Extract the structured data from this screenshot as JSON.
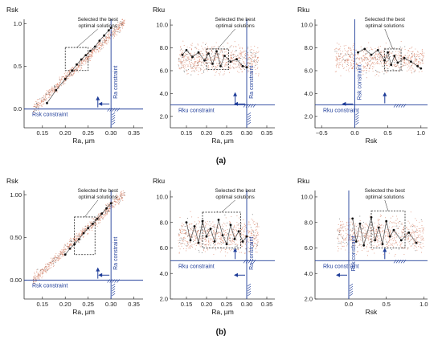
{
  "figure": {
    "row_labels": [
      "(a)",
      "(b)"
    ]
  },
  "colors": {
    "accent": "#1f3d99",
    "points_background": "#d9846a",
    "points_background_alt": "#555555",
    "optimal_points": "#111111",
    "optimal_line": "#333333"
  },
  "chart_data": [
    {
      "type": "scatter",
      "row": "(a)",
      "xlabel": "Ra, µm",
      "ylabel": "Rsk",
      "xlim": [
        0.11,
        0.37
      ],
      "ylim": [
        -0.22,
        1.05
      ],
      "xticks": [
        0.15,
        0.2,
        0.25,
        0.3,
        0.35
      ],
      "yticks": [
        0.0,
        0.5,
        1.0
      ],
      "xtick_labels": [
        "0.15",
        "0.20",
        "0.25",
        "0.30",
        "0.35"
      ],
      "ytick_labels": [
        "0.0",
        "0.5",
        "1.0"
      ],
      "annotation": [
        "Selected the best",
        "optimal solutions"
      ],
      "highlight_box": {
        "x": [
          0.2,
          0.25
        ],
        "y": [
          0.45,
          0.72
        ]
      },
      "constraints": [
        {
          "label": "Rsk constraint",
          "orientation": "horizontal",
          "value": 0.0
        },
        {
          "label": "Ra constraint",
          "orientation": "vertical",
          "value": 0.3
        }
      ],
      "cloud": {
        "kind": "band",
        "x_range": [
          0.13,
          0.33
        ],
        "y_at_xmin": 0.0,
        "y_at_xmax": 1.02,
        "spread": 0.06
      },
      "optimal_points": [
        [
          0.16,
          0.07
        ],
        [
          0.18,
          0.22
        ],
        [
          0.2,
          0.35
        ],
        [
          0.215,
          0.45
        ],
        [
          0.225,
          0.52
        ],
        [
          0.235,
          0.58
        ],
        [
          0.245,
          0.63
        ],
        [
          0.255,
          0.68
        ],
        [
          0.265,
          0.73
        ],
        [
          0.275,
          0.8
        ],
        [
          0.285,
          0.86
        ],
        [
          0.295,
          0.92
        ],
        [
          0.3,
          0.95
        ]
      ]
    },
    {
      "type": "scatter",
      "row": "(a)",
      "xlabel": "Ra, µm",
      "ylabel": "Rku",
      "xlim": [
        0.11,
        0.37
      ],
      "ylim": [
        1.0,
        10.5
      ],
      "xticks": [
        0.15,
        0.2,
        0.25,
        0.3,
        0.35
      ],
      "yticks": [
        2.0,
        4.0,
        6.0,
        8.0,
        10.0
      ],
      "xtick_labels": [
        "0.15",
        "0.20",
        "0.25",
        "0.30",
        "0.35"
      ],
      "ytick_labels": [
        "2.0",
        "4.0",
        "6.0",
        "8.0",
        "10.0"
      ],
      "annotation": [
        "Selected the best",
        "optimal solutions"
      ],
      "highlight_box": {
        "x": [
          0.2,
          0.255
        ],
        "y": [
          6.1,
          7.9
        ]
      },
      "constraints": [
        {
          "label": "Rku constraint",
          "orientation": "horizontal",
          "value": 3.0
        },
        {
          "label": "Ra constraint",
          "orientation": "vertical",
          "value": 0.3
        }
      ],
      "cloud": {
        "kind": "blob",
        "x_range": [
          0.13,
          0.33
        ],
        "y_center": 7.0,
        "y_spread": 1.1
      },
      "optimal_points": [
        [
          0.14,
          7.4
        ],
        [
          0.15,
          7.8
        ],
        [
          0.165,
          7.2
        ],
        [
          0.18,
          7.6
        ],
        [
          0.195,
          6.9
        ],
        [
          0.205,
          7.5
        ],
        [
          0.215,
          6.6
        ],
        [
          0.225,
          7.7
        ],
        [
          0.235,
          6.4
        ],
        [
          0.245,
          7.3
        ],
        [
          0.26,
          6.8
        ],
        [
          0.275,
          7.0
        ],
        [
          0.29,
          6.4
        ],
        [
          0.3,
          6.3
        ]
      ]
    },
    {
      "type": "scatter",
      "row": "(a)",
      "xlabel": "Rsk",
      "ylabel": "Rku",
      "xlim": [
        -0.6,
        1.1
      ],
      "ylim": [
        1.0,
        10.5
      ],
      "xticks": [
        -0.5,
        0.0,
        0.5,
        1.0
      ],
      "yticks": [
        2.0,
        4.0,
        6.0,
        8.0,
        10.0
      ],
      "xtick_labels": [
        "−0.5",
        "0.0",
        "0.5",
        "1.0"
      ],
      "ytick_labels": [
        "2.0",
        "4.0",
        "6.0",
        "8.0",
        "10.0"
      ],
      "annotation": [
        "Selected the best",
        "optimal solutions"
      ],
      "highlight_box": {
        "x": [
          0.45,
          0.7
        ],
        "y": [
          6.0,
          7.9
        ]
      },
      "constraints": [
        {
          "label": "Rsk constraint",
          "orientation": "vertical",
          "value": 0.0
        },
        {
          "label": "Rku constraint",
          "orientation": "horizontal",
          "value": 3.0
        }
      ],
      "cloud": {
        "kind": "blob",
        "x_range": [
          -0.3,
          1.05
        ],
        "y_center": 7.0,
        "y_spread": 1.1
      },
      "optimal_points": [
        [
          0.05,
          7.6
        ],
        [
          0.15,
          7.9
        ],
        [
          0.25,
          7.4
        ],
        [
          0.35,
          7.8
        ],
        [
          0.45,
          6.9
        ],
        [
          0.5,
          7.6
        ],
        [
          0.55,
          6.5
        ],
        [
          0.6,
          7.3
        ],
        [
          0.65,
          6.7
        ],
        [
          0.75,
          7.1
        ],
        [
          0.85,
          6.8
        ],
        [
          0.95,
          6.4
        ],
        [
          1.0,
          6.2
        ]
      ]
    },
    {
      "type": "scatter",
      "row": "(b)",
      "xlabel": "Ra, µm",
      "ylabel": "Rsk",
      "xlim": [
        0.11,
        0.37
      ],
      "ylim": [
        -0.22,
        1.05
      ],
      "xticks": [
        0.15,
        0.2,
        0.25,
        0.3,
        0.35
      ],
      "yticks": [
        0.0,
        0.5,
        1.0
      ],
      "xtick_labels": [
        "0.15",
        "0.20",
        "0.25",
        "0.30",
        "0.35"
      ],
      "ytick_labels": [
        "0.00",
        "0.50",
        "1.00"
      ],
      "annotation": [
        "Selected the best",
        "optimal solutions"
      ],
      "highlight_box": {
        "x": [
          0.22,
          0.265
        ],
        "y": [
          0.3,
          0.74
        ]
      },
      "constraints": [
        {
          "label": "Rsk constraint",
          "orientation": "horizontal",
          "value": 0.0
        },
        {
          "label": "Ra constraint",
          "orientation": "vertical",
          "value": 0.3
        }
      ],
      "cloud": {
        "kind": "band",
        "x_range": [
          0.13,
          0.33
        ],
        "y_at_xmin": 0.0,
        "y_at_xmax": 1.02,
        "spread": 0.06
      },
      "optimal_points": [
        [
          0.2,
          0.3
        ],
        [
          0.21,
          0.37
        ],
        [
          0.22,
          0.42
        ],
        [
          0.23,
          0.48
        ],
        [
          0.24,
          0.55
        ],
        [
          0.25,
          0.61
        ],
        [
          0.26,
          0.66
        ],
        [
          0.27,
          0.72
        ],
        [
          0.28,
          0.78
        ],
        [
          0.29,
          0.84
        ],
        [
          0.3,
          0.9
        ]
      ]
    },
    {
      "type": "scatter",
      "row": "(b)",
      "xlabel": "Ra, µm",
      "ylabel": "Rku",
      "xlim": [
        0.11,
        0.37
      ],
      "ylim": [
        2.0,
        10.5
      ],
      "xticks": [
        0.15,
        0.2,
        0.25,
        0.3,
        0.35
      ],
      "yticks": [
        2.0,
        4.0,
        6.0,
        8.0,
        10.0
      ],
      "xtick_labels": [
        "0.15",
        "0.20",
        "0.25",
        "0.30",
        "0.35"
      ],
      "ytick_labels": [
        "2.0",
        "4.0",
        "6.0",
        "8.0",
        "10.0"
      ],
      "annotation": [
        "Selected the best",
        "optimal solutions"
      ],
      "highlight_box": {
        "x": [
          0.19,
          0.285
        ],
        "y": [
          6.0,
          8.8
        ]
      },
      "constraints": [
        {
          "label": "Rku constraint",
          "orientation": "horizontal",
          "value": 5.0
        },
        {
          "label": "Ra constraint",
          "orientation": "vertical",
          "value": 0.3
        }
      ],
      "cloud": {
        "kind": "blob",
        "x_range": [
          0.13,
          0.33
        ],
        "y_center": 7.0,
        "y_spread": 1.2
      },
      "optimal_points": [
        [
          0.15,
          8.0
        ],
        [
          0.16,
          6.6
        ],
        [
          0.17,
          7.7
        ],
        [
          0.18,
          6.4
        ],
        [
          0.19,
          8.1
        ],
        [
          0.2,
          6.9
        ],
        [
          0.21,
          7.5
        ],
        [
          0.22,
          6.5
        ],
        [
          0.23,
          8.2
        ],
        [
          0.24,
          7.0
        ],
        [
          0.25,
          6.3
        ],
        [
          0.26,
          7.8
        ],
        [
          0.27,
          6.7
        ],
        [
          0.28,
          7.3
        ],
        [
          0.29,
          6.5
        ],
        [
          0.3,
          6.9
        ]
      ]
    },
    {
      "type": "scatter",
      "row": "(b)",
      "xlabel": "Rsk",
      "ylabel": "Rku",
      "xlim": [
        -0.45,
        1.05
      ],
      "ylim": [
        2.0,
        10.5
      ],
      "xticks": [
        0.0,
        0.5,
        1.0
      ],
      "yticks": [
        2.0,
        4.0,
        6.0,
        8.0,
        10.0
      ],
      "xtick_labels": [
        "0.0",
        "0.5",
        "1.0"
      ],
      "ytick_labels": [
        "2.0",
        "4.0",
        "6.0",
        "8.0",
        "10.0"
      ],
      "annotation": [
        "Selected the best",
        "optimal solutions"
      ],
      "highlight_box": {
        "x": [
          0.3,
          0.75
        ],
        "y": [
          6.0,
          8.9
        ]
      },
      "constraints": [
        {
          "label": "Rsk constraint",
          "orientation": "vertical",
          "value": 0.0
        },
        {
          "label": "Rku constraint",
          "orientation": "horizontal",
          "value": 5.0
        }
      ],
      "cloud": {
        "kind": "blob",
        "x_range": [
          -0.15,
          1.0
        ],
        "y_center": 7.0,
        "y_spread": 1.2
      },
      "optimal_points": [
        [
          0.05,
          8.3
        ],
        [
          0.1,
          6.5
        ],
        [
          0.15,
          7.9
        ],
        [
          0.2,
          6.2
        ],
        [
          0.3,
          8.4
        ],
        [
          0.35,
          6.6
        ],
        [
          0.4,
          7.6
        ],
        [
          0.45,
          6.3
        ],
        [
          0.5,
          8.1
        ],
        [
          0.55,
          6.9
        ],
        [
          0.6,
          7.4
        ],
        [
          0.7,
          6.6
        ],
        [
          0.8,
          7.2
        ],
        [
          0.9,
          6.4
        ]
      ]
    }
  ]
}
